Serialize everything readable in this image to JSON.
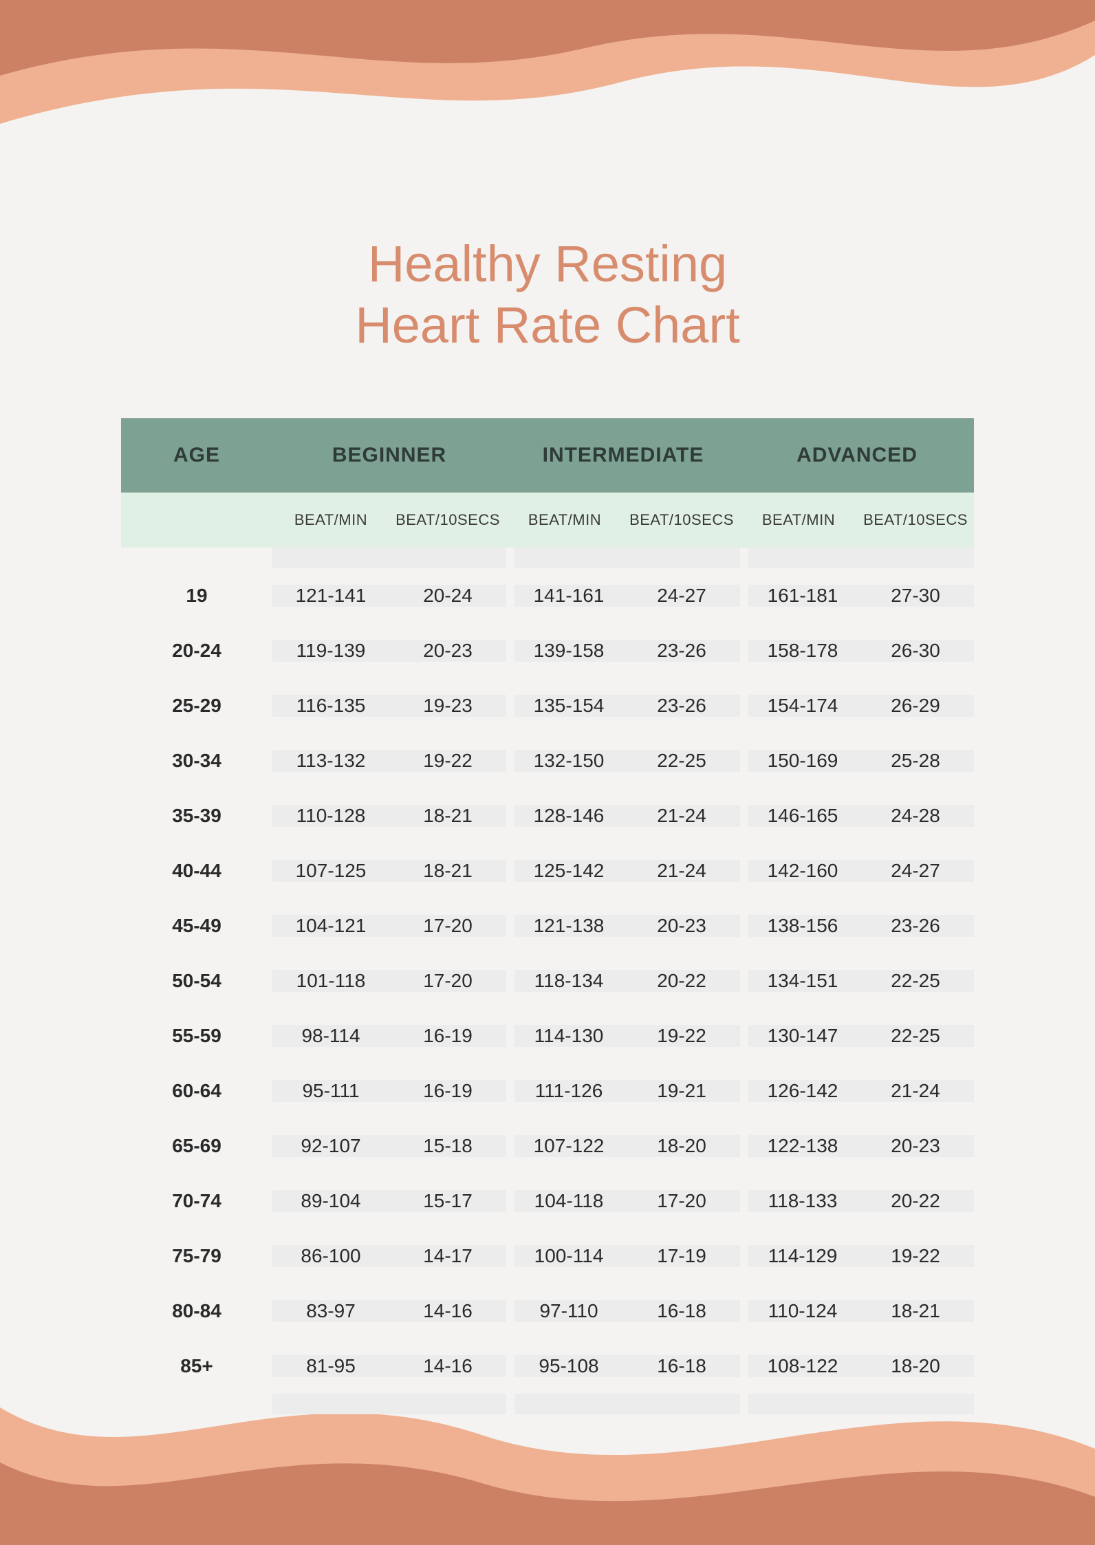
{
  "title_line1": "Healthy Resting",
  "title_line2": "Heart Rate Chart",
  "colors": {
    "background": "#f4f3f1",
    "title": "#d88c6e",
    "header_bg": "#7da193",
    "subheader_bg": "#e1f0e4",
    "body_bg": "#ececec",
    "wave_light": "#efb191",
    "wave_dark": "#cc8164",
    "text_dark": "#2a2a2a"
  },
  "table": {
    "type": "table",
    "headers": {
      "age": "AGE",
      "beginner": "BEGINNER",
      "intermediate": "INTERMEDIATE",
      "advanced": "ADVANCED"
    },
    "subheaders": {
      "bpm": "BEAT/MIN",
      "b10": "BEAT/10SECS"
    },
    "rows": [
      {
        "age": "19",
        "beg_bpm": "121-141",
        "beg_b10": "20-24",
        "int_bpm": "141-161",
        "int_b10": "24-27",
        "adv_bpm": "161-181",
        "adv_b10": "27-30"
      },
      {
        "age": "20-24",
        "beg_bpm": "119-139",
        "beg_b10": "20-23",
        "int_bpm": "139-158",
        "int_b10": "23-26",
        "adv_bpm": "158-178",
        "adv_b10": "26-30"
      },
      {
        "age": "25-29",
        "beg_bpm": "116-135",
        "beg_b10": "19-23",
        "int_bpm": "135-154",
        "int_b10": "23-26",
        "adv_bpm": "154-174",
        "adv_b10": "26-29"
      },
      {
        "age": "30-34",
        "beg_bpm": "113-132",
        "beg_b10": "19-22",
        "int_bpm": "132-150",
        "int_b10": "22-25",
        "adv_bpm": "150-169",
        "adv_b10": "25-28"
      },
      {
        "age": "35-39",
        "beg_bpm": "110-128",
        "beg_b10": "18-21",
        "int_bpm": "128-146",
        "int_b10": "21-24",
        "adv_bpm": "146-165",
        "adv_b10": "24-28"
      },
      {
        "age": "40-44",
        "beg_bpm": "107-125",
        "beg_b10": "18-21",
        "int_bpm": "125-142",
        "int_b10": "21-24",
        "adv_bpm": "142-160",
        "adv_b10": "24-27"
      },
      {
        "age": "45-49",
        "beg_bpm": "104-121",
        "beg_b10": "17-20",
        "int_bpm": "121-138",
        "int_b10": "20-23",
        "adv_bpm": "138-156",
        "adv_b10": "23-26"
      },
      {
        "age": "50-54",
        "beg_bpm": "101-118",
        "beg_b10": "17-20",
        "int_bpm": "118-134",
        "int_b10": "20-22",
        "adv_bpm": "134-151",
        "adv_b10": "22-25"
      },
      {
        "age": "55-59",
        "beg_bpm": "98-114",
        "beg_b10": "16-19",
        "int_bpm": "114-130",
        "int_b10": "19-22",
        "adv_bpm": "130-147",
        "adv_b10": "22-25"
      },
      {
        "age": "60-64",
        "beg_bpm": "95-111",
        "beg_b10": "16-19",
        "int_bpm": "111-126",
        "int_b10": "19-21",
        "adv_bpm": "126-142",
        "adv_b10": "21-24"
      },
      {
        "age": "65-69",
        "beg_bpm": "92-107",
        "beg_b10": "15-18",
        "int_bpm": "107-122",
        "int_b10": "18-20",
        "adv_bpm": "122-138",
        "adv_b10": "20-23"
      },
      {
        "age": "70-74",
        "beg_bpm": "89-104",
        "beg_b10": "15-17",
        "int_bpm": "104-118",
        "int_b10": "17-20",
        "adv_bpm": "118-133",
        "adv_b10": "20-22"
      },
      {
        "age": "75-79",
        "beg_bpm": "86-100",
        "beg_b10": "14-17",
        "int_bpm": "100-114",
        "int_b10": "17-19",
        "adv_bpm": "114-129",
        "adv_b10": "19-22"
      },
      {
        "age": "80-84",
        "beg_bpm": "83-97",
        "beg_b10": "14-16",
        "int_bpm": "97-110",
        "int_b10": "16-18",
        "adv_bpm": "110-124",
        "adv_b10": "18-21"
      },
      {
        "age": "85+",
        "beg_bpm": "81-95",
        "beg_b10": "14-16",
        "int_bpm": "95-108",
        "int_b10": "16-18",
        "adv_bpm": "108-122",
        "adv_b10": "18-20"
      }
    ]
  }
}
